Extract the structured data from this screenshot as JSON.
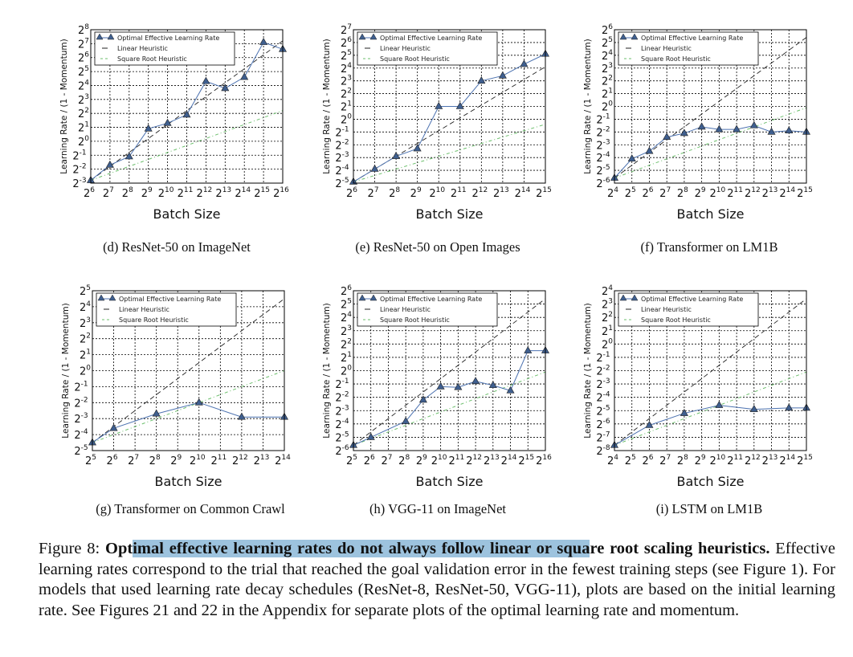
{
  "chart_data": [
    {
      "id": "d",
      "type": "line",
      "title": "(d) ResNet-50 on ImageNet",
      "xlabel": "Batch Size",
      "ylabel": "Learning Rate / (1 - Momentum)",
      "x_log2": [
        6,
        7,
        8,
        9,
        10,
        11,
        12,
        13,
        14,
        15,
        16
      ],
      "y_log2": [
        -2.8,
        -1.7,
        -1.1,
        0.9,
        1.3,
        1.9,
        4.3,
        3.8,
        4.6,
        7.1,
        6.6
      ],
      "xlim_log2": [
        6,
        16
      ],
      "ylim_log2": [
        -3,
        8
      ],
      "xticks": [
        6,
        7,
        8,
        9,
        10,
        11,
        12,
        13,
        14,
        15,
        16
      ],
      "yticks": [
        -3,
        -2,
        -1,
        0,
        1,
        2,
        3,
        4,
        5,
        6,
        7,
        8
      ],
      "linear_heuristic": [
        [
          6,
          -2.8
        ],
        [
          16,
          7.2
        ]
      ],
      "sqrt_heuristic": [
        [
          6,
          -2.8
        ],
        [
          16,
          2.2
        ]
      ]
    },
    {
      "id": "e",
      "type": "line",
      "title": "(e) ResNet-50 on Open Images",
      "xlabel": "Batch Size",
      "ylabel": "Learning Rate / (1 - Momentum)",
      "x_log2": [
        6,
        7,
        8,
        9,
        10,
        11,
        12,
        13,
        14,
        15
      ],
      "y_log2": [
        -4.9,
        -3.9,
        -2.9,
        -2.3,
        1.0,
        1.0,
        3.0,
        3.4,
        4.3,
        5.1
      ],
      "xlim_log2": [
        6,
        15
      ],
      "ylim_log2": [
        -5,
        7
      ],
      "xticks": [
        6,
        7,
        8,
        9,
        10,
        11,
        12,
        13,
        14,
        15
      ],
      "yticks": [
        -5,
        -4,
        -3,
        -2,
        -1,
        0,
        1,
        2,
        3,
        4,
        5,
        6,
        7
      ],
      "linear_heuristic": [
        [
          6,
          -4.9
        ],
        [
          15,
          4.1
        ]
      ],
      "sqrt_heuristic": [
        [
          6,
          -4.9
        ],
        [
          15,
          -0.4
        ]
      ]
    },
    {
      "id": "f",
      "type": "line",
      "title": "(f) Transformer on LM1B",
      "xlabel": "Batch Size",
      "ylabel": "Learning Rate / (1 - Momentum)",
      "x_log2": [
        4,
        5,
        6,
        7,
        8,
        9,
        10,
        11,
        12,
        13,
        14,
        15
      ],
      "y_log2": [
        -5.6,
        -4.1,
        -3.5,
        -2.4,
        -2.1,
        -1.6,
        -1.8,
        -1.8,
        -1.5,
        -2.0,
        -1.9,
        -2.0
      ],
      "xlim_log2": [
        4,
        15
      ],
      "ylim_log2": [
        -6,
        6
      ],
      "xticks": [
        4,
        5,
        6,
        7,
        8,
        9,
        10,
        11,
        12,
        13,
        14,
        15
      ],
      "yticks": [
        -6,
        -5,
        -4,
        -3,
        -2,
        -1,
        0,
        1,
        2,
        3,
        4,
        5,
        6
      ],
      "linear_heuristic": [
        [
          4,
          -5.6
        ],
        [
          15,
          5.4
        ]
      ],
      "sqrt_heuristic": [
        [
          4,
          -5.6
        ],
        [
          15,
          -0.1
        ]
      ]
    },
    {
      "id": "g",
      "type": "line",
      "title": "(g) Transformer on Common Crawl",
      "xlabel": "Batch Size",
      "ylabel": "Learning Rate / (1 - Momentum)",
      "x_log2": [
        5,
        6,
        8,
        10,
        12,
        14
      ],
      "y_log2": [
        -4.5,
        -3.6,
        -2.7,
        -2.0,
        -2.9,
        -2.9
      ],
      "xlim_log2": [
        5,
        14
      ],
      "ylim_log2": [
        -5,
        5
      ],
      "xticks": [
        5,
        6,
        7,
        8,
        9,
        10,
        11,
        12,
        13,
        14
      ],
      "yticks": [
        -5,
        -4,
        -3,
        -2,
        -1,
        0,
        1,
        2,
        3,
        4,
        5
      ],
      "linear_heuristic": [
        [
          5,
          -4.5
        ],
        [
          14,
          4.5
        ]
      ],
      "sqrt_heuristic": [
        [
          5,
          -4.5
        ],
        [
          14,
          0.0
        ]
      ]
    },
    {
      "id": "h",
      "type": "line",
      "title": "(h) VGG-11 on ImageNet",
      "xlabel": "Batch Size",
      "ylabel": "Learning Rate / (1 - Momentum)",
      "x_log2": [
        5,
        6,
        8,
        9,
        10,
        11,
        12,
        13,
        14,
        15,
        16
      ],
      "y_log2": [
        -5.6,
        -5.0,
        -3.8,
        -2.2,
        -1.2,
        -1.25,
        -0.8,
        -1.1,
        -1.5,
        1.5,
        1.5
      ],
      "xlim_log2": [
        5,
        16
      ],
      "ylim_log2": [
        -6,
        6
      ],
      "xticks": [
        5,
        6,
        7,
        8,
        9,
        10,
        11,
        12,
        13,
        14,
        15,
        16
      ],
      "yticks": [
        -6,
        -5,
        -4,
        -3,
        -2,
        -1,
        0,
        1,
        2,
        3,
        4,
        5,
        6
      ],
      "linear_heuristic": [
        [
          5,
          -5.6
        ],
        [
          16,
          5.4
        ]
      ],
      "sqrt_heuristic": [
        [
          5,
          -5.6
        ],
        [
          16,
          -0.1
        ]
      ]
    },
    {
      "id": "i",
      "type": "line",
      "title": "(i) LSTM on LM1B",
      "xlabel": "Batch Size",
      "ylabel": "Learning Rate / (1 - Momentum)",
      "x_log2": [
        4,
        6,
        8,
        10,
        12,
        14,
        15
      ],
      "y_log2": [
        -7.6,
        -6.1,
        -5.2,
        -4.6,
        -4.9,
        -4.8,
        -4.8
      ],
      "xlim_log2": [
        4,
        15
      ],
      "ylim_log2": [
        -8,
        4
      ],
      "xticks": [
        4,
        5,
        6,
        7,
        8,
        9,
        10,
        11,
        12,
        13,
        14,
        15
      ],
      "yticks": [
        -8,
        -7,
        -6,
        -5,
        -4,
        -3,
        -2,
        -1,
        0,
        1,
        2,
        3,
        4
      ],
      "linear_heuristic": [
        [
          4,
          -7.6
        ],
        [
          15,
          3.4
        ]
      ],
      "sqrt_heuristic": [
        [
          4,
          -7.6
        ],
        [
          15,
          -2.1
        ]
      ]
    }
  ],
  "legend": {
    "optimal": "Optimal Effective Learning Rate",
    "linear": "Linear Heuristic",
    "sqrt": "Square Root Heuristic",
    "placement": "top-left"
  },
  "tick_base": "2",
  "colors": {
    "optimal": "#4c72b0",
    "marker": "#3b5a8a",
    "linear": "#222222",
    "sqrt": "#6cbf6c",
    "highlight": "#9dc3de"
  },
  "caption": {
    "label": "Figure 8:",
    "bold_a": "Opt",
    "bold_highlighted": "imal effective learning rates do not always follow linear or squa",
    "bold_b": "re root scaling heuristics.",
    "body": "Effective learning rates correspond to the trial that reached the goal validation error in the fewest training steps (see Figure 1). For models that used learning rate decay schedules (ResNet-8, ResNet-50, VGG-11), plots are based on the initial learning rate. See Figures 21 and 22 in the Appendix for separate plots of the optimal learning rate and momentum."
  }
}
